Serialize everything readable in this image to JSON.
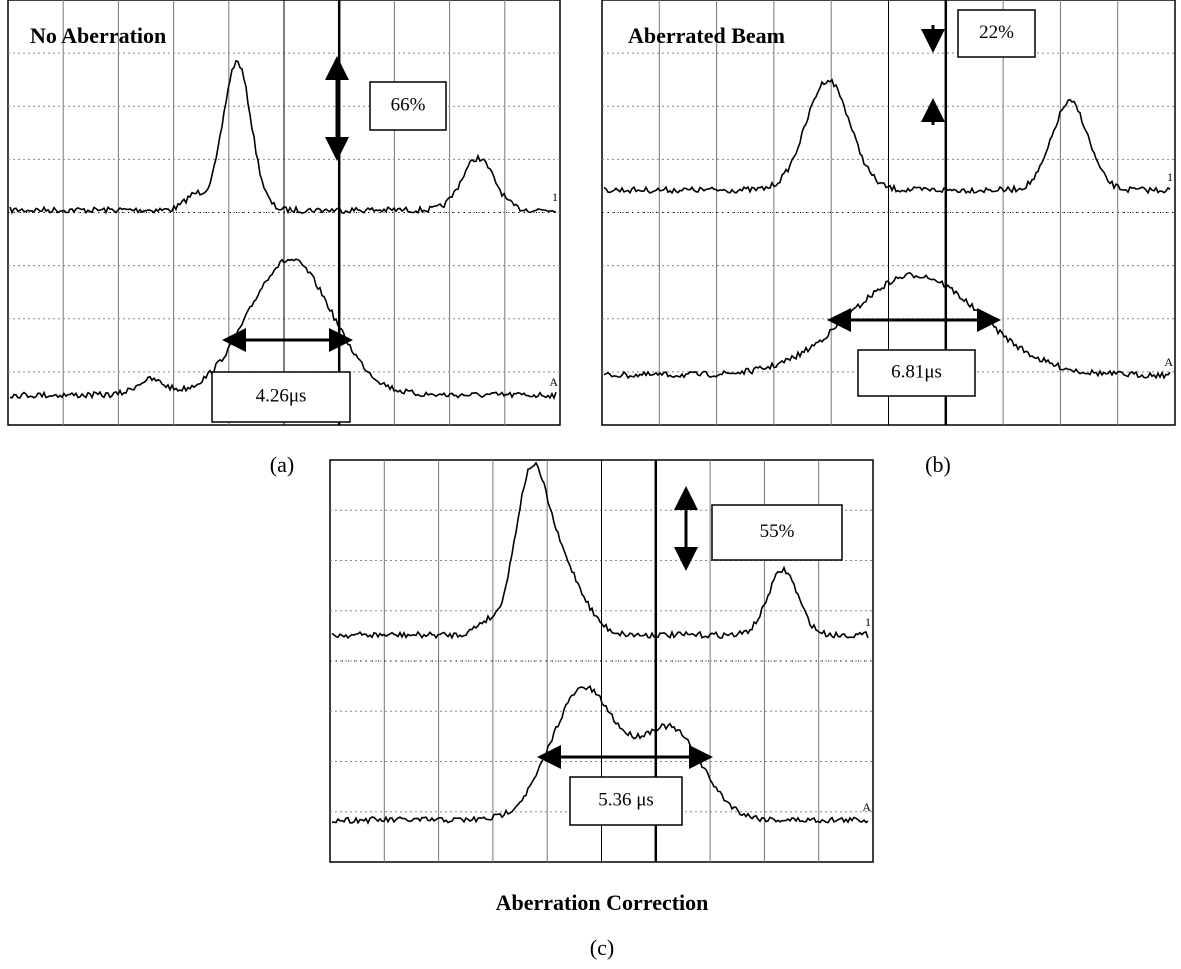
{
  "panels": [
    {
      "title": "No Aberration",
      "peak_label": "66%",
      "width_label": "4.26μs",
      "channel_labels": [
        "1",
        "A"
      ],
      "caption": "(a)"
    },
    {
      "title": "Aberrated Beam",
      "peak_label": "22%",
      "width_label": "6.81μs",
      "channel_labels": [
        "1",
        "A"
      ],
      "caption": "(b)"
    },
    {
      "title": "Aberration Correction",
      "peak_label": "55%",
      "width_label": "5.36 μs",
      "channel_labels": [
        "1",
        "A"
      ],
      "caption": "(c)"
    }
  ]
}
